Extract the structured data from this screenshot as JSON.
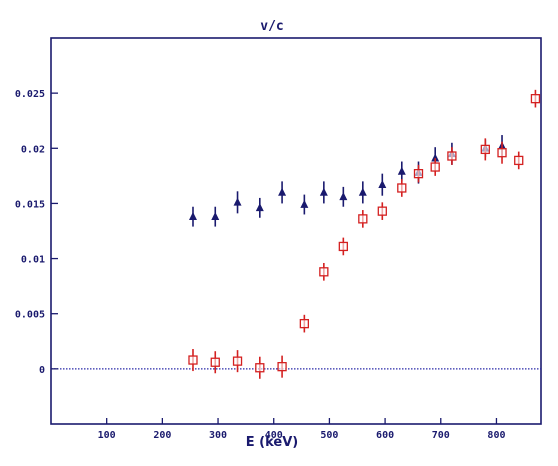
{
  "chart_data": {
    "type": "scatter",
    "title": "v/c",
    "xlabel": "E (keV)",
    "ylabel": "",
    "xlim": [
      0,
      880
    ],
    "ylim": [
      -0.005,
      0.03
    ],
    "xticks": [
      100,
      200,
      300,
      400,
      500,
      600,
      700,
      800
    ],
    "xtick_labels": [
      "100",
      "200",
      "300",
      "400",
      "500",
      "600",
      "700",
      "800"
    ],
    "yticks": [
      0,
      0.005,
      0.01,
      0.015,
      0.02,
      0.025
    ],
    "ytick_labels": [
      "0",
      "0.005",
      "0.01",
      "0.015",
      "0.02",
      "0.025"
    ],
    "zero_line": true,
    "grid": false,
    "colors": {
      "axis": "#1a1a6e",
      "triangles": "#1a1a6e",
      "squares": "#d42020",
      "zero_line": "#2a2aa8"
    },
    "series": [
      {
        "marker": "triangle",
        "points": [
          {
            "x": 255,
            "y": 0.0138,
            "err": 0.0009
          },
          {
            "x": 295,
            "y": 0.0138,
            "err": 0.0009
          },
          {
            "x": 335,
            "y": 0.0151,
            "err": 0.001
          },
          {
            "x": 375,
            "y": 0.0146,
            "err": 0.0009
          },
          {
            "x": 415,
            "y": 0.016,
            "err": 0.001
          },
          {
            "x": 455,
            "y": 0.0149,
            "err": 0.0009
          },
          {
            "x": 490,
            "y": 0.016,
            "err": 0.001
          },
          {
            "x": 525,
            "y": 0.0156,
            "err": 0.0009
          },
          {
            "x": 560,
            "y": 0.016,
            "err": 0.001
          },
          {
            "x": 595,
            "y": 0.0167,
            "err": 0.001
          },
          {
            "x": 630,
            "y": 0.0179,
            "err": 0.0009
          },
          {
            "x": 660,
            "y": 0.0178,
            "err": 0.001
          },
          {
            "x": 690,
            "y": 0.0191,
            "err": 0.001
          },
          {
            "x": 720,
            "y": 0.0195,
            "err": 0.001
          },
          {
            "x": 780,
            "y": 0.02,
            "err": 0.0008
          },
          {
            "x": 810,
            "y": 0.0202,
            "err": 0.001
          }
        ]
      },
      {
        "marker": "square",
        "points": [
          {
            "x": 255,
            "y": 0.0008,
            "err": 0.001
          },
          {
            "x": 295,
            "y": 0.0006,
            "err": 0.001
          },
          {
            "x": 335,
            "y": 0.0007,
            "err": 0.001
          },
          {
            "x": 375,
            "y": 0.0001,
            "err": 0.001
          },
          {
            "x": 415,
            "y": 0.0002,
            "err": 0.001
          },
          {
            "x": 455,
            "y": 0.0041,
            "err": 0.0008
          },
          {
            "x": 490,
            "y": 0.0088,
            "err": 0.0008
          },
          {
            "x": 525,
            "y": 0.0111,
            "err": 0.0008
          },
          {
            "x": 560,
            "y": 0.0136,
            "err": 0.0008
          },
          {
            "x": 595,
            "y": 0.0143,
            "err": 0.0008
          },
          {
            "x": 630,
            "y": 0.0164,
            "err": 0.0008
          },
          {
            "x": 660,
            "y": 0.0177,
            "err": 0.0008
          },
          {
            "x": 690,
            "y": 0.0183,
            "err": 0.0008
          },
          {
            "x": 720,
            "y": 0.0193,
            "err": 0.0008
          },
          {
            "x": 780,
            "y": 0.0199,
            "err": 0.001
          },
          {
            "x": 810,
            "y": 0.0196,
            "err": 0.001
          },
          {
            "x": 840,
            "y": 0.0189,
            "err": 0.0008
          },
          {
            "x": 870,
            "y": 0.0245,
            "err": 0.0008
          }
        ]
      }
    ]
  }
}
